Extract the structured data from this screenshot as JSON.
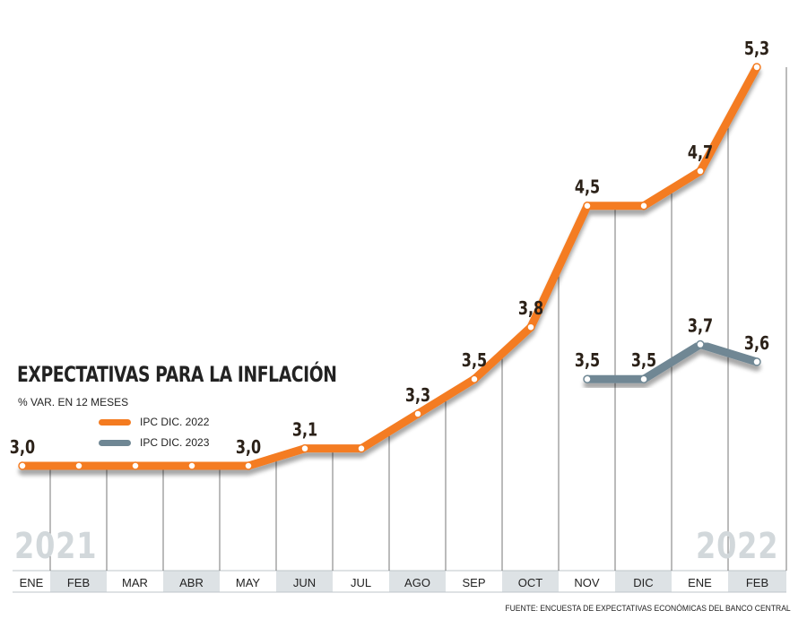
{
  "title": "EXPECTATIVAS PARA LA INFLACIÓN",
  "subtitle": "% VAR. EN 12 MESES",
  "source": "FUENTE: ENCUESTA DE EXPECTATIVAS ECONÓMICAS DEL BANCO CENTRAL",
  "years": [
    "2021",
    "2022"
  ],
  "colors": {
    "series_2022": "#f47b20",
    "series_2023": "#6f8794",
    "band_light": "#ffffff",
    "band_dark": "#dde2e5",
    "grid": "#555555",
    "label": "#2b2118"
  },
  "chart_data": {
    "type": "line",
    "categories": [
      "ENE",
      "FEB",
      "MAR",
      "ABR",
      "MAY",
      "JUN",
      "JUL",
      "AGO",
      "SEP",
      "OCT",
      "NOV",
      "DIC",
      "ENE",
      "FEB"
    ],
    "ylim": [
      2.8,
      5.5
    ],
    "grid": "vertical",
    "legend_position": "left",
    "series": [
      {
        "name": "IPC DIC. 2022",
        "color": "#f47b20",
        "values": [
          3.0,
          3.0,
          3.0,
          3.0,
          3.0,
          3.1,
          3.1,
          3.3,
          3.5,
          3.8,
          4.5,
          4.5,
          4.7,
          5.3
        ],
        "labels": [
          "3,0",
          null,
          null,
          null,
          "3,0",
          "3,1",
          null,
          "3,3",
          "3,5",
          "3,8",
          "4,5",
          null,
          "4,7",
          "5,3"
        ]
      },
      {
        "name": "IPC DIC. 2023",
        "color": "#6f8794",
        "values": [
          null,
          null,
          null,
          null,
          null,
          null,
          null,
          null,
          null,
          null,
          3.5,
          3.5,
          3.7,
          3.6
        ],
        "labels": [
          null,
          null,
          null,
          null,
          null,
          null,
          null,
          null,
          null,
          null,
          "3,5",
          "3,5",
          "3,7",
          "3,6"
        ]
      }
    ]
  }
}
